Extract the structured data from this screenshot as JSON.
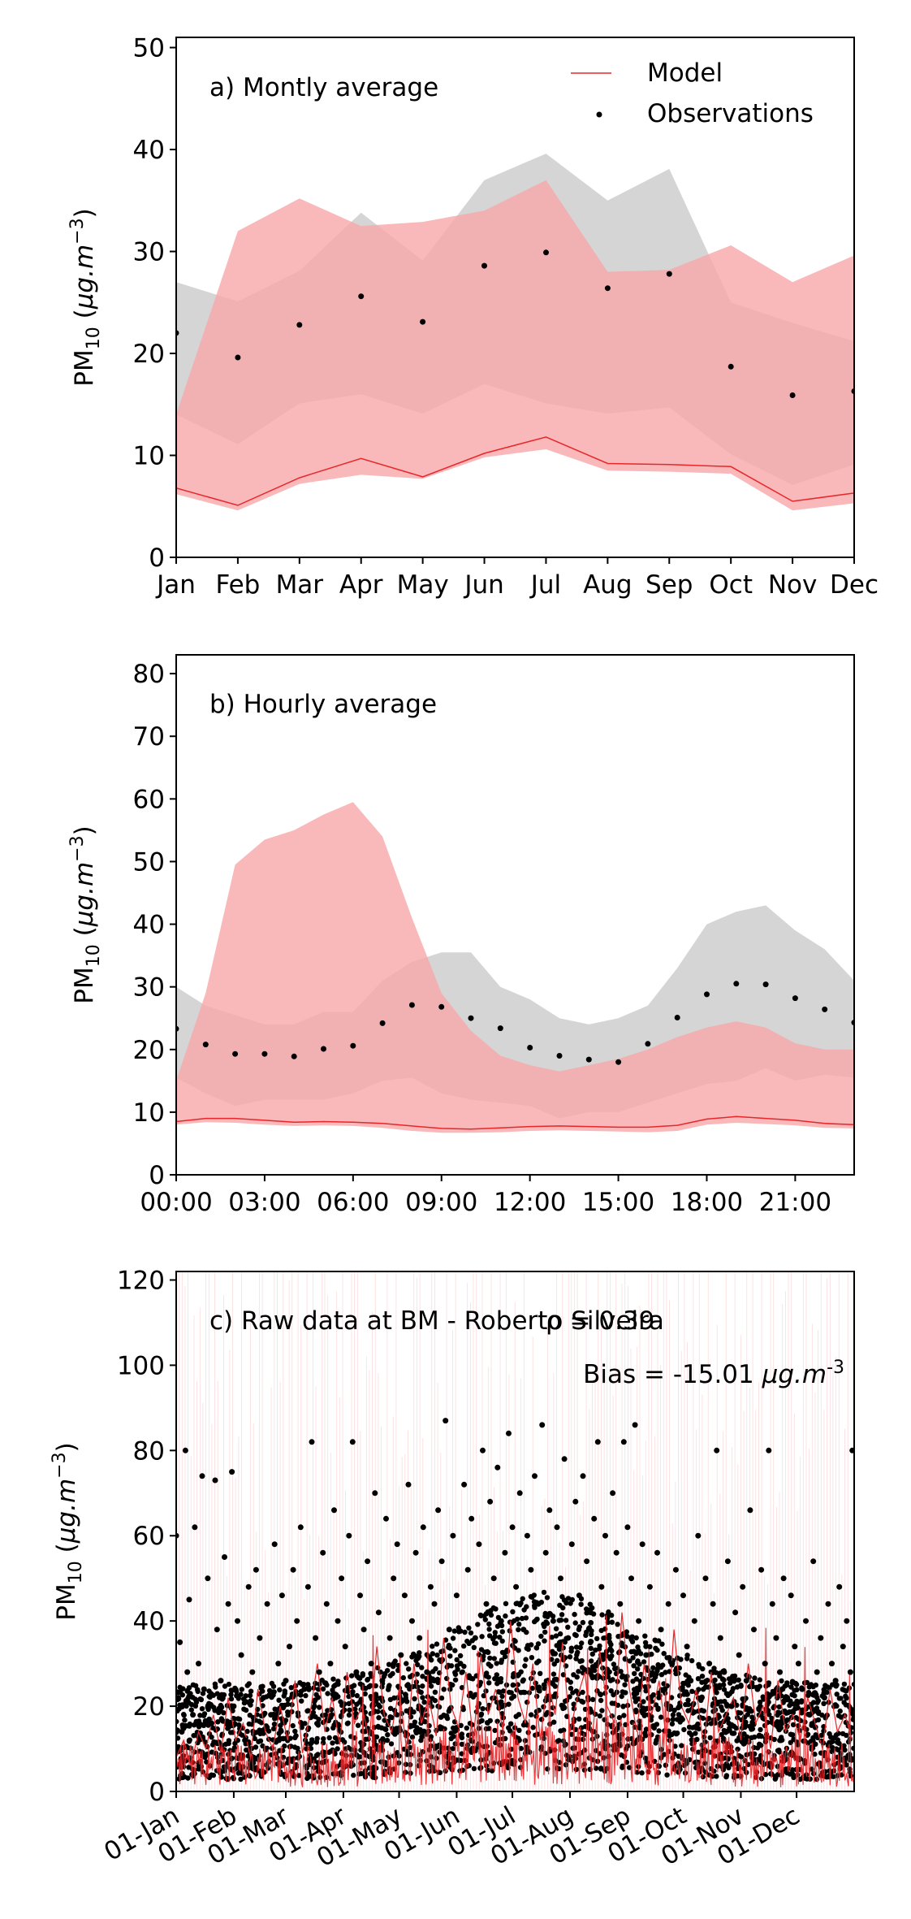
{
  "chart_data": [
    {
      "type": "line",
      "panel": "a",
      "title": "a) Montly average",
      "ylabel": "PM_10 (µg.m^-3)",
      "ylim": [
        0,
        51
      ],
      "yticks": [
        0,
        10,
        20,
        30,
        40,
        50
      ],
      "categories": [
        "Jan",
        "Feb",
        "Mar",
        "Apr",
        "May",
        "Jun",
        "Jul",
        "Aug",
        "Sep",
        "Oct",
        "Nov",
        "Dec"
      ],
      "legend": {
        "placement": "top-right",
        "entries": [
          "Model",
          "Observations"
        ]
      },
      "series": [
        {
          "name": "Model",
          "kind": "line",
          "color": "#e8272a",
          "values": [
            6.8,
            5.1,
            7.8,
            9.7,
            7.9,
            10.2,
            11.8,
            9.2,
            9.1,
            8.9,
            5.5,
            6.3
          ],
          "band_low": [
            6.2,
            4.6,
            7.2,
            8.1,
            7.7,
            9.8,
            10.6,
            8.5,
            8.4,
            8.2,
            4.6,
            5.3
          ],
          "band_high": [
            14.0,
            32.0,
            35.2,
            32.5,
            32.9,
            34.0,
            37.0,
            28.0,
            28.2,
            30.6,
            27.0,
            29.6
          ]
        },
        {
          "name": "Observations",
          "kind": "points",
          "color": "#000000",
          "values": [
            22.0,
            19.6,
            22.8,
            25.6,
            23.1,
            28.6,
            29.9,
            26.4,
            27.8,
            18.7,
            15.9,
            16.3
          ],
          "band_low": [
            14.0,
            11.1,
            15.1,
            16.0,
            14.1,
            17.0,
            15.1,
            14.1,
            14.7,
            10.1,
            7.1,
            9.1
          ],
          "band_high": [
            27.0,
            25.1,
            28.1,
            33.8,
            29.1,
            37.0,
            39.6,
            35.0,
            38.1,
            25.0,
            23.0,
            21.2
          ]
        }
      ]
    },
    {
      "type": "line",
      "panel": "b",
      "title": "b) Hourly average",
      "ylabel": "PM_10 (µg.m^-3)",
      "ylim": [
        0,
        83
      ],
      "yticks": [
        0,
        10,
        20,
        30,
        40,
        50,
        60,
        70,
        80
      ],
      "xticks": [
        "00:00",
        "03:00",
        "06:00",
        "09:00",
        "12:00",
        "15:00",
        "18:00",
        "21:00"
      ],
      "x": [
        0,
        1,
        2,
        3,
        4,
        5,
        6,
        7,
        8,
        9,
        10,
        11,
        12,
        13,
        14,
        15,
        16,
        17,
        18,
        19,
        20,
        21,
        22,
        23
      ],
      "series": [
        {
          "name": "Model",
          "kind": "line",
          "color": "#e8272a",
          "values": [
            8.5,
            9.0,
            9.0,
            8.7,
            8.4,
            8.5,
            8.4,
            8.2,
            7.8,
            7.4,
            7.3,
            7.5,
            7.7,
            7.8,
            7.7,
            7.6,
            7.6,
            7.9,
            8.9,
            9.3,
            9.0,
            8.7,
            8.2,
            8.0
          ],
          "band_low": [
            8.0,
            8.4,
            8.3,
            8.0,
            7.8,
            7.9,
            7.8,
            7.5,
            7.0,
            6.7,
            6.7,
            6.8,
            7.0,
            7.1,
            7.0,
            6.9,
            6.8,
            7.0,
            8.0,
            8.3,
            8.1,
            7.9,
            7.5,
            7.4
          ],
          "band_high": [
            15.0,
            29.0,
            49.5,
            53.5,
            55.0,
            57.5,
            59.5,
            54.0,
            41.0,
            29.0,
            23.0,
            19.0,
            17.5,
            16.5,
            17.5,
            18.5,
            20.0,
            22.0,
            23.5,
            24.5,
            23.5,
            21.0,
            20.0,
            20.0
          ]
        },
        {
          "name": "Observations",
          "kind": "points",
          "color": "#000000",
          "values": [
            23.3,
            20.8,
            19.3,
            19.3,
            18.9,
            20.1,
            20.6,
            24.2,
            27.1,
            26.8,
            25.0,
            23.4,
            20.3,
            19.0,
            18.4,
            18.0,
            20.9,
            25.1,
            28.8,
            30.5,
            30.4,
            28.2,
            26.4,
            24.3
          ],
          "band_low": [
            15.5,
            13.0,
            11.0,
            12.0,
            12.0,
            12.0,
            13.0,
            15.0,
            15.5,
            13.0,
            12.0,
            11.5,
            11.0,
            9.0,
            10.0,
            10.0,
            11.5,
            13.0,
            14.5,
            15.0,
            17.0,
            15.0,
            16.0,
            15.5
          ],
          "band_high": [
            30.0,
            27.0,
            25.5,
            24.0,
            24.0,
            26.0,
            26.0,
            31.0,
            34.0,
            35.5,
            35.5,
            30.0,
            28.0,
            25.0,
            24.0,
            25.0,
            27.0,
            33.0,
            40.0,
            42.0,
            43.0,
            39.0,
            36.0,
            31.0
          ]
        }
      ]
    },
    {
      "type": "line",
      "panel": "c",
      "title": "c) Raw data at BM - Roberto Silveira",
      "annotation_r": "ρ = 0.39",
      "annotation_bias_prefix": "Bias = -15.01 ",
      "annotation_bias_unit": "µg.m",
      "annotation_bias_exp": "-3",
      "ylabel": "PM_10 (µg.m^-3)",
      "ylim": [
        0,
        122
      ],
      "yticks": [
        0,
        20,
        40,
        60,
        80,
        100,
        120
      ],
      "xlim_days": [
        0,
        365
      ],
      "xticks": [
        {
          "label": "01-Jan",
          "day": 0
        },
        {
          "label": "01-Feb",
          "day": 31
        },
        {
          "label": "01-Mar",
          "day": 59
        },
        {
          "label": "01-Apr",
          "day": 90
        },
        {
          "label": "01-May",
          "day": 120
        },
        {
          "label": "01-Jun",
          "day": 151
        },
        {
          "label": "01-Jul",
          "day": 181
        },
        {
          "label": "01-Aug",
          "day": 212
        },
        {
          "label": "01-Sep",
          "day": 243
        },
        {
          "label": "01-Oct",
          "day": 273
        },
        {
          "label": "01-Nov",
          "day": 304
        },
        {
          "label": "01-Dec",
          "day": 334
        }
      ],
      "series": [
        {
          "name": "Model",
          "kind": "line",
          "color": "#e8272a",
          "days": [
            0,
            4,
            8,
            12,
            16,
            20,
            24,
            28,
            32,
            36,
            40,
            44,
            48,
            52,
            56,
            60,
            64,
            68,
            72,
            76,
            80,
            84,
            88,
            92,
            96,
            100,
            104,
            108,
            112,
            116,
            120,
            124,
            128,
            132,
            136,
            140,
            144,
            148,
            152,
            156,
            160,
            164,
            168,
            172,
            176,
            180,
            184,
            188,
            192,
            196,
            200,
            204,
            208,
            212,
            216,
            220,
            224,
            228,
            232,
            236,
            240,
            244,
            248,
            252,
            256,
            260,
            264,
            268,
            272,
            276,
            280,
            284,
            288,
            292,
            296,
            300,
            304,
            308,
            312,
            316,
            320,
            324,
            328,
            332,
            336,
            340,
            344,
            348,
            352,
            356,
            360,
            364
          ],
          "values": [
            8,
            12,
            6,
            14,
            10,
            18,
            9,
            22,
            12,
            16,
            8,
            24,
            14,
            10,
            20,
            12,
            26,
            9,
            18,
            30,
            14,
            22,
            11,
            28,
            16,
            20,
            12,
            34,
            18,
            14,
            24,
            10,
            30,
            16,
            22,
            13,
            36,
            20,
            15,
            28,
            12,
            32,
            18,
            24,
            14,
            40,
            22,
            16,
            30,
            12,
            26,
            18,
            35,
            14,
            22,
            28,
            12,
            33,
            20,
            16,
            42,
            24,
            14,
            30,
            18,
            26,
            12,
            38,
            20,
            16,
            24,
            10,
            28,
            14,
            18,
            22,
            12,
            30,
            16,
            20,
            10,
            26,
            14,
            18,
            12,
            22,
            16,
            10,
            24,
            14,
            18,
            12
          ]
        },
        {
          "name": "Observations",
          "kind": "points",
          "color": "#000000",
          "days": [
            0,
            1,
            2,
            3,
            5,
            6,
            7,
            9,
            10,
            12,
            14,
            15,
            17,
            19,
            21,
            22,
            24,
            26,
            28,
            30,
            31,
            33,
            35,
            37,
            39,
            41,
            43,
            45,
            47,
            49,
            51,
            53,
            55,
            57,
            59,
            61,
            63,
            65,
            67,
            69,
            71,
            73,
            75,
            77,
            79,
            81,
            83,
            85,
            87,
            89,
            91,
            93,
            95,
            97,
            99,
            101,
            103,
            105,
            107,
            109,
            111,
            113,
            115,
            117,
            119,
            121,
            123,
            125,
            127,
            129,
            131,
            133,
            135,
            137,
            139,
            141,
            143,
            145,
            147,
            149,
            151,
            153,
            155,
            157,
            159,
            161,
            163,
            165,
            167,
            169,
            171,
            173,
            175,
            177,
            179,
            181,
            183,
            185,
            187,
            189,
            191,
            193,
            195,
            197,
            199,
            201,
            203,
            205,
            207,
            209,
            211,
            213,
            215,
            217,
            219,
            221,
            223,
            225,
            227,
            229,
            231,
            233,
            235,
            237,
            239,
            241,
            243,
            245,
            247,
            249,
            251,
            253,
            255,
            257,
            259,
            261,
            263,
            265,
            267,
            269,
            271,
            273,
            275,
            277,
            279,
            281,
            283,
            285,
            287,
            289,
            291,
            293,
            295,
            297,
            299,
            301,
            303,
            305,
            307,
            309,
            311,
            313,
            315,
            317,
            319,
            321,
            323,
            325,
            327,
            329,
            331,
            333,
            335,
            337,
            339,
            341,
            343,
            345,
            347,
            349,
            351,
            353,
            355,
            357,
            359,
            361,
            363,
            364
          ],
          "values": [
            60,
            22,
            35,
            14,
            80,
            28,
            45,
            18,
            62,
            30,
            74,
            24,
            50,
            16,
            73,
            38,
            26,
            55,
            44,
            75,
            20,
            40,
            32,
            12,
            48,
            28,
            52,
            36,
            22,
            44,
            18,
            58,
            30,
            46,
            26,
            34,
            52,
            40,
            62,
            24,
            48,
            82,
            36,
            28,
            56,
            44,
            30,
            66,
            40,
            50,
            34,
            60,
            82,
            28,
            46,
            38,
            54,
            30,
            70,
            42,
            26,
            64,
            36,
            50,
            58,
            32,
            46,
            72,
            40,
            56,
            36,
            62,
            28,
            48,
            44,
            66,
            54,
            87,
            38,
            60,
            46,
            30,
            72,
            52,
            64,
            36,
            58,
            80,
            44,
            68,
            50,
            76,
            40,
            56,
            84,
            62,
            48,
            70,
            38,
            60,
            52,
            74,
            44,
            86,
            56,
            66,
            40,
            62,
            50,
            78,
            36,
            58,
            68,
            46,
            74,
            54,
            42,
            64,
            82,
            48,
            60,
            36,
            70,
            56,
            44,
            82,
            62,
            50,
            86,
            40,
            58,
            32,
            48,
            26,
            56,
            38,
            24,
            44,
            30,
            52,
            20,
            46,
            34,
            26,
            40,
            60,
            22,
            50,
            30,
            44,
            80,
            36,
            28,
            54,
            20,
            42,
            32,
            48,
            26,
            66,
            38,
            24,
            52,
            30,
            80,
            44,
            36,
            28,
            50,
            22,
            46,
            34,
            30,
            24,
            40,
            18,
            54,
            28,
            36,
            22,
            44,
            30,
            26,
            48,
            34,
            40,
            28,
            80
          ]
        }
      ]
    }
  ]
}
